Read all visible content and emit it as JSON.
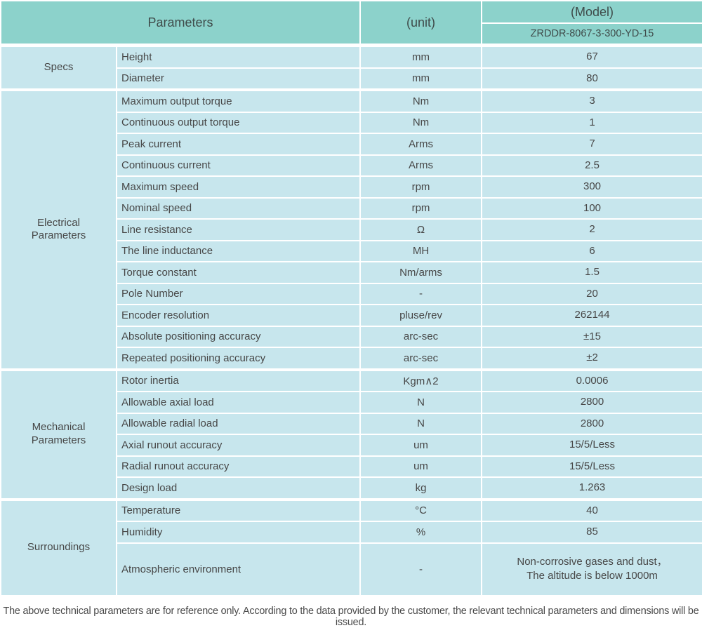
{
  "colors": {
    "header_bg": "#8CD2CB",
    "row_bg": "#C7E6ED",
    "grid": "#FFFFFF",
    "text": "#474747"
  },
  "header": {
    "parameters_label": "Parameters",
    "unit_label": "(unit)",
    "model_label": "(Model)",
    "model_value": "ZRDDR-8067-3-300-YD-15"
  },
  "sections": [
    {
      "label": "Specs",
      "rows": [
        {
          "name": "Height",
          "unit": "mm",
          "value": "67"
        },
        {
          "name": "Diameter",
          "unit": "mm",
          "value": "80"
        }
      ]
    },
    {
      "label": "Electrical\nParameters",
      "rows": [
        {
          "name": "Maximum output torque",
          "unit": "Nm",
          "value": "3"
        },
        {
          "name": "Continuous output torque",
          "unit": "Nm",
          "value": "1"
        },
        {
          "name": "Peak current",
          "unit": "Arms",
          "value": "7"
        },
        {
          "name": "Continuous current",
          "unit": "Arms",
          "value": "2.5"
        },
        {
          "name": "Maximum speed",
          "unit": "rpm",
          "value": "300"
        },
        {
          "name": "Nominal speed",
          "unit": "rpm",
          "value": "100"
        },
        {
          "name": "Line resistance",
          "unit": "Ω",
          "value": "2"
        },
        {
          "name": "The line inductance",
          "unit": "MH",
          "value": "6"
        },
        {
          "name": "Torque constant",
          "unit": "Nm/arms",
          "value": "1.5"
        },
        {
          "name": "Pole Number",
          "unit": "-",
          "value": "20"
        },
        {
          "name": "Encoder resolution",
          "unit": "pluse/rev",
          "value": "262144"
        },
        {
          "name": "Absolute positioning accuracy",
          "unit": "arc-sec",
          "value": "±15"
        },
        {
          "name": "Repeated positioning accuracy",
          "unit": "arc-sec",
          "value": "±2"
        }
      ]
    },
    {
      "label": "Mechanical\nParameters",
      "rows": [
        {
          "name": "Rotor inertia",
          "unit": "Kgm∧2",
          "value": "0.0006"
        },
        {
          "name": "Allowable axial load",
          "unit": "N",
          "value": "2800"
        },
        {
          "name": "Allowable radial load",
          "unit": "N",
          "value": "2800"
        },
        {
          "name": "Axial runout accuracy",
          "unit": "um",
          "value": "15/5/Less"
        },
        {
          "name": "Radial runout accuracy",
          "unit": "um",
          "value": "15/5/Less"
        },
        {
          "name": "Design load",
          "unit": "kg",
          "value": "1.263"
        }
      ]
    },
    {
      "label": "Surroundings",
      "rows": [
        {
          "name": "Temperature",
          "unit": "°C",
          "value": "40"
        },
        {
          "name": "Humidity",
          "unit": "%",
          "value": "85"
        },
        {
          "name": "Atmospheric environment",
          "unit": "-",
          "value": "Non-corrosive gases and dust，\nThe altitude is below 1000m"
        }
      ]
    }
  ],
  "footer": {
    "note": "The above technical parameters are for reference only. According to the data provided by the customer, the relevant technical parameters and dimensions will be issued."
  }
}
